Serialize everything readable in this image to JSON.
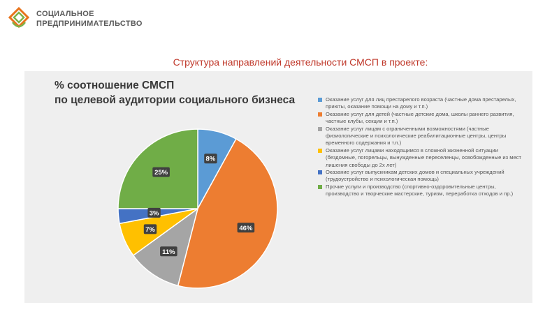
{
  "logo": {
    "line1": "СОЦИАЛЬНОЕ",
    "line2": "ПРЕДПРИНИМАТЕЛЬСТВО",
    "colors": [
      "#e8741c",
      "#7fb24a"
    ]
  },
  "slide_title": "Структура направлений деятельности СМСП в проекте:",
  "chart_data": {
    "type": "pie",
    "title": "% соотношение СМСП",
    "subtitle": "по целевой аудитории социального бизнеса",
    "slices": [
      {
        "label": "Оказание услуг для лиц престарелого возраста (частные дома престарелых, приюты, оказание помощи на дому и т.п.)",
        "value": 8,
        "value_label": "8%",
        "color": "#5b9bd5"
      },
      {
        "label": "Оказание услуг для детей (частные детские дома, школы раннего развития, частные клубы, секции и т.п.)",
        "value": 46,
        "value_label": "46%",
        "color": "#ed7d31"
      },
      {
        "label": "Оказание услуг лицам с ограниченными возможностями (частные физиологические и психологические реабилитационные центры, центры временного содержания и т.п.)",
        "value": 11,
        "value_label": "11%",
        "color": "#a5a5a5"
      },
      {
        "label": "Оказание услуг лицами находящимся в сложной жизненной ситуации (бездомные, погорельцы, вынужденные переселенцы, освобожденные из мест лишения свободы до 2х лет)",
        "value": 7,
        "value_label": "7%",
        "color": "#ffc000"
      },
      {
        "label": "Оказание услуг выпускникам детских домов и специальных учреждений (трудоустройство и психологическая помощь)",
        "value": 3,
        "value_label": "3%",
        "color": "#4472c4"
      },
      {
        "label": "Прочие услуги и производство (спортивно-оздоровительные центры, производство и творческие мастерские, туризм, переработка отходов и пр.)",
        "value": 25,
        "value_label": "25%",
        "color": "#70ad47"
      }
    ],
    "legend_placement": "right"
  }
}
